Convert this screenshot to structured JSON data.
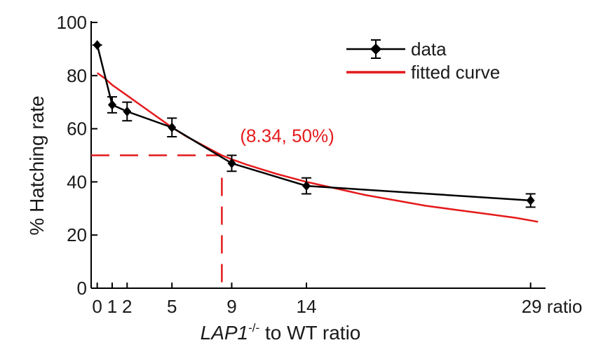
{
  "chart_data": {
    "type": "line",
    "title": "",
    "xlabel_italic": "LAP1",
    "xlabel_sup": "-/-",
    "xlabel_rest": " to WT ratio",
    "ylabel": "% Hatching rate",
    "xlim": [
      -0.5,
      30
    ],
    "ylim": [
      0,
      100
    ],
    "x_ticks": [
      0,
      1,
      2,
      5,
      9,
      14,
      29
    ],
    "x_tick_labels": [
      "0",
      "1",
      "2",
      "5",
      "9",
      "14",
      "29 ratio"
    ],
    "y_ticks": [
      0,
      20,
      40,
      60,
      80,
      100
    ],
    "y_tick_labels": [
      "0",
      "20",
      "40",
      "60",
      "80",
      "100"
    ],
    "series": [
      {
        "name": "data",
        "color": "#000000",
        "marker": "diamond",
        "x": [
          0,
          1,
          2,
          5,
          9,
          14,
          29
        ],
        "y": [
          91.5,
          69,
          66.5,
          60.5,
          47,
          38.5,
          33
        ],
        "err": [
          0,
          3,
          3.5,
          3.5,
          3,
          3,
          2.5
        ]
      },
      {
        "name": "fitted curve",
        "color": "#e41a1c",
        "x": [
          0,
          0.5,
          1,
          2,
          3,
          4,
          5,
          6,
          7,
          8,
          8.34,
          9,
          10,
          12,
          14,
          16,
          18,
          20,
          22,
          24,
          26,
          28,
          29.5
        ],
        "y": [
          81,
          79,
          76.5,
          72.5,
          68.5,
          64.5,
          60.5,
          57,
          54,
          51,
          50,
          48.5,
          46.5,
          43,
          40,
          37.5,
          35,
          33,
          31,
          29.5,
          28,
          26.5,
          25
        ]
      }
    ],
    "reference_point": {
      "x": 8.34,
      "y": 50
    },
    "legend": [
      "data",
      "fitted curve"
    ],
    "legend_position": "top-right",
    "annotation": "(8.34, 50%)",
    "annotation_color": "#e41a1c",
    "grid": false
  }
}
